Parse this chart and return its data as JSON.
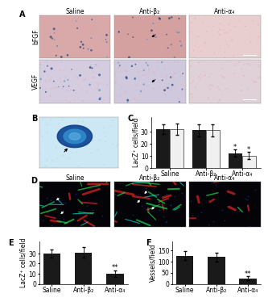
{
  "panel_C": {
    "categories": [
      "Saline",
      "Anti-β₂",
      "Anti-α₄"
    ],
    "bFGF_values": [
      32,
      31,
      12
    ],
    "bFGF_errors": [
      4,
      5,
      3
    ],
    "VEGF_values": [
      32,
      31,
      10
    ],
    "VEGF_errors": [
      5,
      5,
      3
    ],
    "bFGF_color": "#1a1a1a",
    "VEGF_color": "#f0f0f0",
    "ylabel": "LacZ⁺ cells/field",
    "ylim": [
      0,
      42
    ],
    "yticks": [
      0,
      10,
      20,
      30
    ],
    "sig_bFGF": "*",
    "sig_VEGF": "*"
  },
  "panel_E": {
    "categories": [
      "Saline",
      "Anti-β₂",
      "Anti-α₄"
    ],
    "values": [
      30,
      31,
      10
    ],
    "errors": [
      4,
      5,
      3
    ],
    "bar_color": "#1a1a1a",
    "ylabel": "LacZ⁺ cells/field",
    "ylim": [
      0,
      42
    ],
    "yticks": [
      0,
      10,
      20,
      30
    ],
    "significance": "**"
  },
  "panel_F": {
    "categories": [
      "Saline",
      "Anti-β₂",
      "Anti-α₄"
    ],
    "values": [
      125,
      120,
      25
    ],
    "errors": [
      20,
      20,
      8
    ],
    "bar_color": "#1a1a1a",
    "ylabel": "Vessels/field",
    "ylim": [
      0,
      190
    ],
    "yticks": [
      0,
      50,
      100,
      150
    ],
    "significance": "**"
  },
  "row_labels_A": [
    "bFGF",
    "VEGF"
  ],
  "col_labels_A": [
    "Saline",
    "Anti-β₂",
    "Anti-α₄"
  ],
  "col_labels_D": [
    "Saline",
    "Anti-β₂",
    "Anti-α₄"
  ],
  "img_colors_A": [
    [
      "#d9a8a8",
      "#d5a0a0",
      "#e8cece"
    ],
    [
      "#d5cce0",
      "#d0c8dc",
      "#e0d0d8"
    ]
  ],
  "panel_B_bg": "#cce8f4",
  "panel_D_bg": "#030308",
  "label_fontsize": 7,
  "tick_fontsize": 5.5,
  "axis_label_fontsize": 5.5,
  "bg_color": "#ffffff"
}
